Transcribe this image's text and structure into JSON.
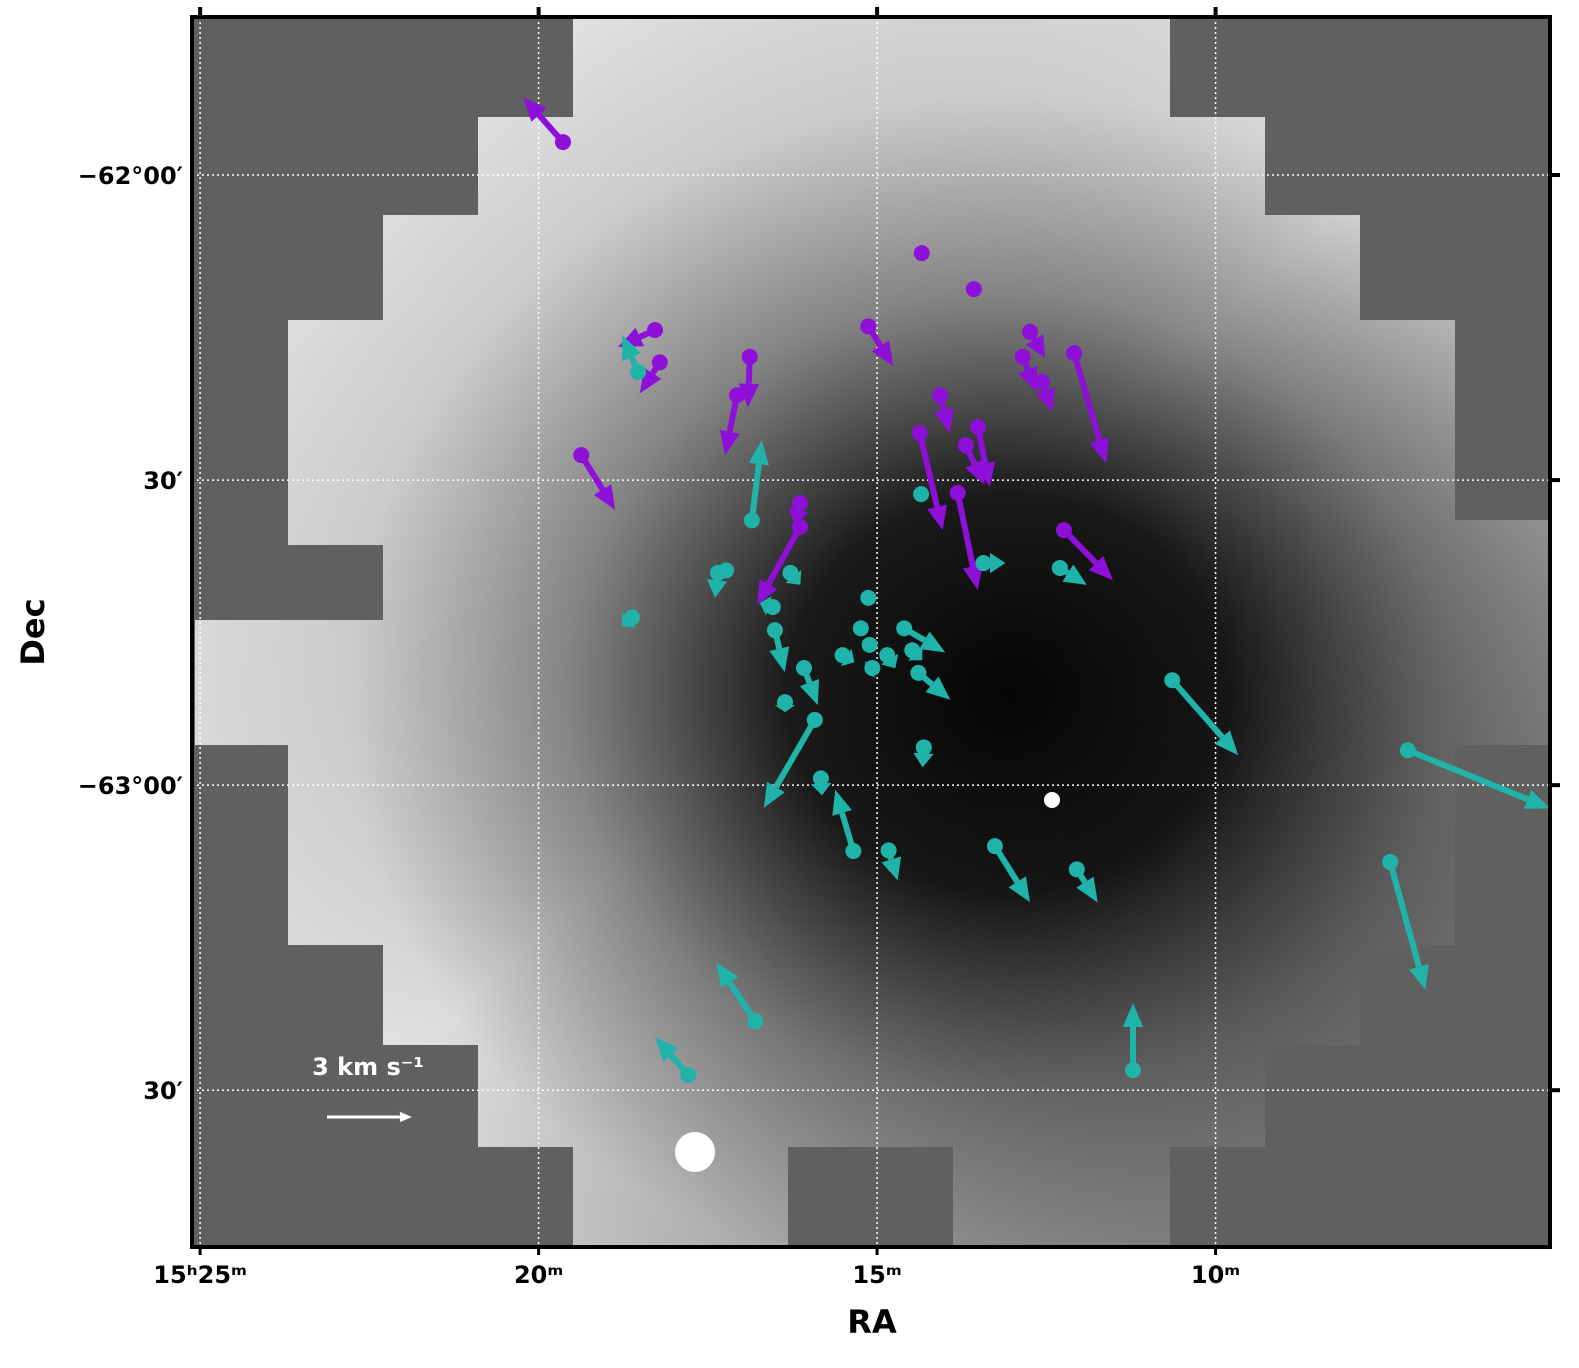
{
  "chart_data": {
    "type": "quiver",
    "xlabel": "RA",
    "ylabel": "Dec",
    "xlim": [
      25.12,
      5.06
    ],
    "ylim": [
      -63.757,
      -61.741
    ],
    "xticks": [
      {
        "value": 25,
        "label": "15ʰ25ᵐ"
      },
      {
        "value": 20,
        "label": "20ᵐ"
      },
      {
        "value": 15,
        "label": "15ᵐ"
      },
      {
        "value": 10,
        "label": "10ᵐ"
      }
    ],
    "yticks": [
      {
        "value": -62,
        "label": "−62°00′"
      },
      {
        "value": -62.5,
        "label": "30′"
      },
      {
        "value": -63,
        "label": "−63°00′"
      },
      {
        "value": -63.5,
        "label": "30′"
      }
    ],
    "grid": true,
    "scale": {
      "value": 3,
      "label": "3 km s⁻¹"
    },
    "groups": [
      {
        "color": "#8e0fd8",
        "points": [
          {
            "x": 19.64,
            "y": -61.946,
            "vx": -1.41,
            "vy": 1.59
          },
          {
            "x": 14.34,
            "y": -62.128,
            "vx": 0,
            "vy": 0
          },
          {
            "x": 13.57,
            "y": -62.187,
            "vx": 0,
            "vy": 0
          },
          {
            "x": 18.28,
            "y": -62.254,
            "vx": -1.31,
            "vy": -0.6
          },
          {
            "x": 18.21,
            "y": -62.307,
            "vx": -0.71,
            "vy": -1.1
          },
          {
            "x": 16.88,
            "y": -62.298,
            "vx": -0.07,
            "vy": -1.8
          },
          {
            "x": 17.07,
            "y": -62.361,
            "vx": -0.42,
            "vy": -2.12
          },
          {
            "x": 19.37,
            "y": -62.459,
            "vx": 1.2,
            "vy": -1.94
          },
          {
            "x": 15.13,
            "y": -62.248,
            "vx": 0.88,
            "vy": -1.41
          },
          {
            "x": 12.74,
            "y": -62.257,
            "vx": 0.53,
            "vy": -0.92
          },
          {
            "x": 12.85,
            "y": -62.298,
            "vx": 0.49,
            "vy": -1.24
          },
          {
            "x": 12.56,
            "y": -62.339,
            "vx": 0.35,
            "vy": -1.06
          },
          {
            "x": 12.09,
            "y": -62.292,
            "vx": 1.13,
            "vy": -3.89
          },
          {
            "x": 14.07,
            "y": -62.361,
            "vx": 0.35,
            "vy": -1.34
          },
          {
            "x": 14.37,
            "y": -62.423,
            "vx": 0.81,
            "vy": -3.43
          },
          {
            "x": 13.51,
            "y": -62.413,
            "vx": 0.42,
            "vy": -2.12
          },
          {
            "x": 13.69,
            "y": -62.443,
            "vx": 0.67,
            "vy": -1.41
          },
          {
            "x": 13.81,
            "y": -62.521,
            "vx": 0.71,
            "vy": -3.43
          },
          {
            "x": 16.14,
            "y": -62.538,
            "vx": -0.18,
            "vy": -0.78
          },
          {
            "x": 16.14,
            "y": -62.577,
            "vx": -1.52,
            "vy": -2.76
          },
          {
            "x": 12.24,
            "y": -62.582,
            "vx": 1.73,
            "vy": -1.77
          }
        ]
      },
      {
        "color": "#1fb3aa",
        "points": [
          {
            "x": 18.53,
            "y": -62.323,
            "vx": -0.57,
            "vy": 1.31
          },
          {
            "x": 16.85,
            "y": -62.566,
            "vx": 0.35,
            "vy": 2.83
          },
          {
            "x": 17.35,
            "y": -62.652,
            "vx": -0.11,
            "vy": -0.88
          },
          {
            "x": 17.23,
            "y": -62.648,
            "vx": 0,
            "vy": 0
          },
          {
            "x": 18.62,
            "y": -62.725,
            "vx": -0.35,
            "vy": -0.32
          },
          {
            "x": 16.28,
            "y": -62.652,
            "vx": 0.35,
            "vy": -0.42
          },
          {
            "x": 16.54,
            "y": -62.708,
            "vx": -0.46,
            "vy": 0.14
          },
          {
            "x": 16.51,
            "y": -62.746,
            "vx": 0.35,
            "vy": -1.48
          },
          {
            "x": 16.08,
            "y": -62.808,
            "vx": 0.49,
            "vy": -1.31
          },
          {
            "x": 16.36,
            "y": -62.864,
            "vx": 0,
            "vy": -0.35
          },
          {
            "x": 15.92,
            "y": -62.893,
            "vx": -1.8,
            "vy": -3.11
          },
          {
            "x": 15.13,
            "y": -62.693,
            "vx": 0,
            "vy": 0
          },
          {
            "x": 15.24,
            "y": -62.743,
            "vx": 0,
            "vy": 0
          },
          {
            "x": 15.51,
            "y": -62.787,
            "vx": 0.42,
            "vy": -0.25
          },
          {
            "x": 15.11,
            "y": -62.77,
            "vx": 0,
            "vy": 0
          },
          {
            "x": 15.07,
            "y": -62.808,
            "vx": -0.25,
            "vy": -0.14
          },
          {
            "x": 14.85,
            "y": -62.787,
            "vx": 0.28,
            "vy": -0.46
          },
          {
            "x": 14.6,
            "y": -62.743,
            "vx": 1.45,
            "vy": -0.85
          },
          {
            "x": 14.48,
            "y": -62.779,
            "vx": 0.35,
            "vy": -0.35
          },
          {
            "x": 14.39,
            "y": -62.816,
            "vx": 1.13,
            "vy": -0.95
          },
          {
            "x": 14.31,
            "y": -62.938,
            "vx": -0.04,
            "vy": -0.71
          },
          {
            "x": 14.35,
            "y": -62.523,
            "vx": 0,
            "vy": 0
          },
          {
            "x": 13.43,
            "y": -62.636,
            "vx": 0.78,
            "vy": 0
          },
          {
            "x": 12.3,
            "y": -62.644,
            "vx": 0.95,
            "vy": -0.6
          },
          {
            "x": 10.64,
            "y": -62.828,
            "vx": 2.33,
            "vy": -2.65
          },
          {
            "x": 7.16,
            "y": -62.943,
            "vx": 5.02,
            "vy": -2.05
          },
          {
            "x": 7.42,
            "y": -63.126,
            "vx": 1.24,
            "vy": -4.52
          },
          {
            "x": 15.83,
            "y": -62.989,
            "vx": 0.04,
            "vy": -0.6
          },
          {
            "x": 15.35,
            "y": -63.108,
            "vx": -0.64,
            "vy": 2.16
          },
          {
            "x": 14.83,
            "y": -63.107,
            "vx": 0.32,
            "vy": -1.06
          },
          {
            "x": 13.26,
            "y": -63.1,
            "vx": 1.24,
            "vy": -1.98
          },
          {
            "x": 12.05,
            "y": -63.138,
            "vx": 0.74,
            "vy": -1.17
          },
          {
            "x": 16.8,
            "y": -63.387,
            "vx": -1.38,
            "vy": 2.08
          },
          {
            "x": 17.79,
            "y": -63.475,
            "vx": -1.17,
            "vy": 1.34
          },
          {
            "x": 11.22,
            "y": -63.467,
            "vx": 0,
            "vy": 2.37
          }
        ]
      }
    ]
  }
}
